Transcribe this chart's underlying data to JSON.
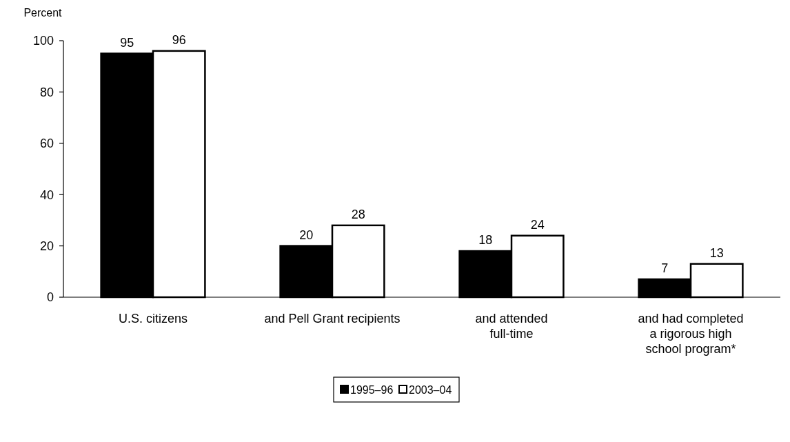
{
  "chart_data": {
    "type": "bar",
    "ylabel": "Percent",
    "categories": [
      "U.S. citizens",
      "and Pell Grant recipients",
      "and attended\nfull-time",
      "and had completed\na rigorous high\nschool program*"
    ],
    "series": [
      {
        "name": "1995–96",
        "color": "#000000",
        "values": [
          95,
          20,
          18,
          7
        ]
      },
      {
        "name": "2003–04",
        "color": "#ffffff",
        "values": [
          96,
          28,
          24,
          13
        ]
      }
    ],
    "ylim": [
      0,
      100
    ],
    "yticks": [
      0,
      20,
      40,
      60,
      80,
      100
    ],
    "grid": false,
    "legend": "bottom",
    "data_labels": true
  }
}
